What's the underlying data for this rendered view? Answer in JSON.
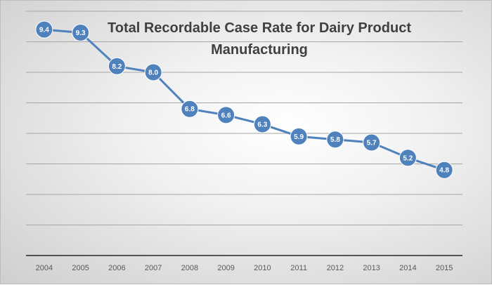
{
  "chart_data": {
    "type": "line",
    "title_lines": [
      "Total Recordable Case Rate for Dairy Product",
      "Manufacturing"
    ],
    "categories": [
      "2004",
      "2005",
      "2006",
      "2007",
      "2008",
      "2009",
      "2010",
      "2011",
      "2012",
      "2013",
      "2014",
      "2015"
    ],
    "values": [
      9.4,
      9.3,
      8.2,
      8.0,
      6.8,
      6.6,
      6.3,
      5.9,
      5.8,
      5.7,
      5.2,
      4.8
    ],
    "data_labels": [
      "9.4",
      "9.3",
      "8.2",
      "8.0",
      "6.8",
      "6.6",
      "6.3",
      "5.9",
      "5.8",
      "5.7",
      "5.2",
      "4.8"
    ],
    "xlabel": "",
    "ylabel": "",
    "ylim": [
      2,
      10
    ],
    "y_gridline_step": 1,
    "y_tick_labels_shown": false,
    "grid": true,
    "legend": "none",
    "colors": {
      "series": "#4f81bd",
      "grid": "#a6a6a6",
      "axis": "#262626"
    }
  }
}
